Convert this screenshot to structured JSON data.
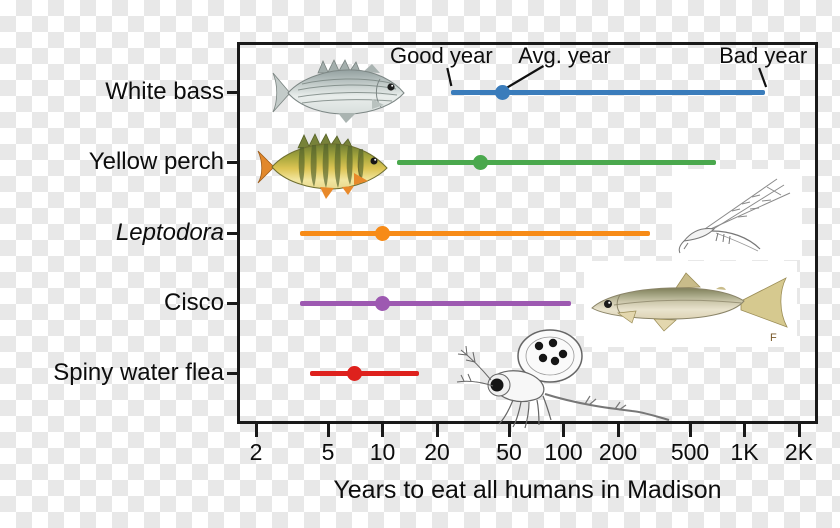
{
  "chart_data": {
    "type": "dot-range",
    "xlabel": "Years to eat all humans in Madison",
    "xscale": "log",
    "xlim": [
      1.6,
      2600
    ],
    "grid": false,
    "units": "years",
    "x_ticks": [
      {
        "value": 2,
        "label": "2"
      },
      {
        "value": 5,
        "label": "5"
      },
      {
        "value": 10,
        "label": "10"
      },
      {
        "value": 20,
        "label": "20"
      },
      {
        "value": 50,
        "label": "50"
      },
      {
        "value": 100,
        "label": "100"
      },
      {
        "value": 200,
        "label": "200"
      },
      {
        "value": 500,
        "label": "500"
      },
      {
        "value": 1000,
        "label": "1K"
      },
      {
        "value": 2000,
        "label": "2K"
      }
    ],
    "annotations": [
      {
        "label": "Good year",
        "points_to": "white-bass-range-start"
      },
      {
        "label": "Avg. year",
        "points_to": "white-bass-avg-dot"
      },
      {
        "label": "Bad year",
        "points_to": "white-bass-range-end"
      }
    ],
    "series": [
      {
        "name": "White bass",
        "italic": false,
        "good_year": 24,
        "avg_year": 46,
        "bad_year": 1300,
        "color": "#3a7cbb",
        "image": "white-bass-photo"
      },
      {
        "name": "Yellow perch",
        "italic": false,
        "good_year": 12,
        "avg_year": 35,
        "bad_year": 700,
        "color": "#4aa84d",
        "image": "yellow-perch-photo"
      },
      {
        "name": "Leptodora",
        "italic": true,
        "good_year": 3.5,
        "avg_year": 10,
        "bad_year": 300,
        "color": "#f78b17",
        "image": "leptodora-line-drawing"
      },
      {
        "name": "Cisco",
        "italic": false,
        "good_year": 3.5,
        "avg_year": 10,
        "bad_year": 110,
        "color": "#9d59b1",
        "image": "cisco-photo"
      },
      {
        "name": "Spiny water flea",
        "italic": false,
        "good_year": 4,
        "avg_year": 7,
        "bad_year": 16,
        "color": "#de211d",
        "image": "spiny-water-flea-line-drawing"
      }
    ]
  },
  "images": {
    "cisco_mark": "F"
  }
}
